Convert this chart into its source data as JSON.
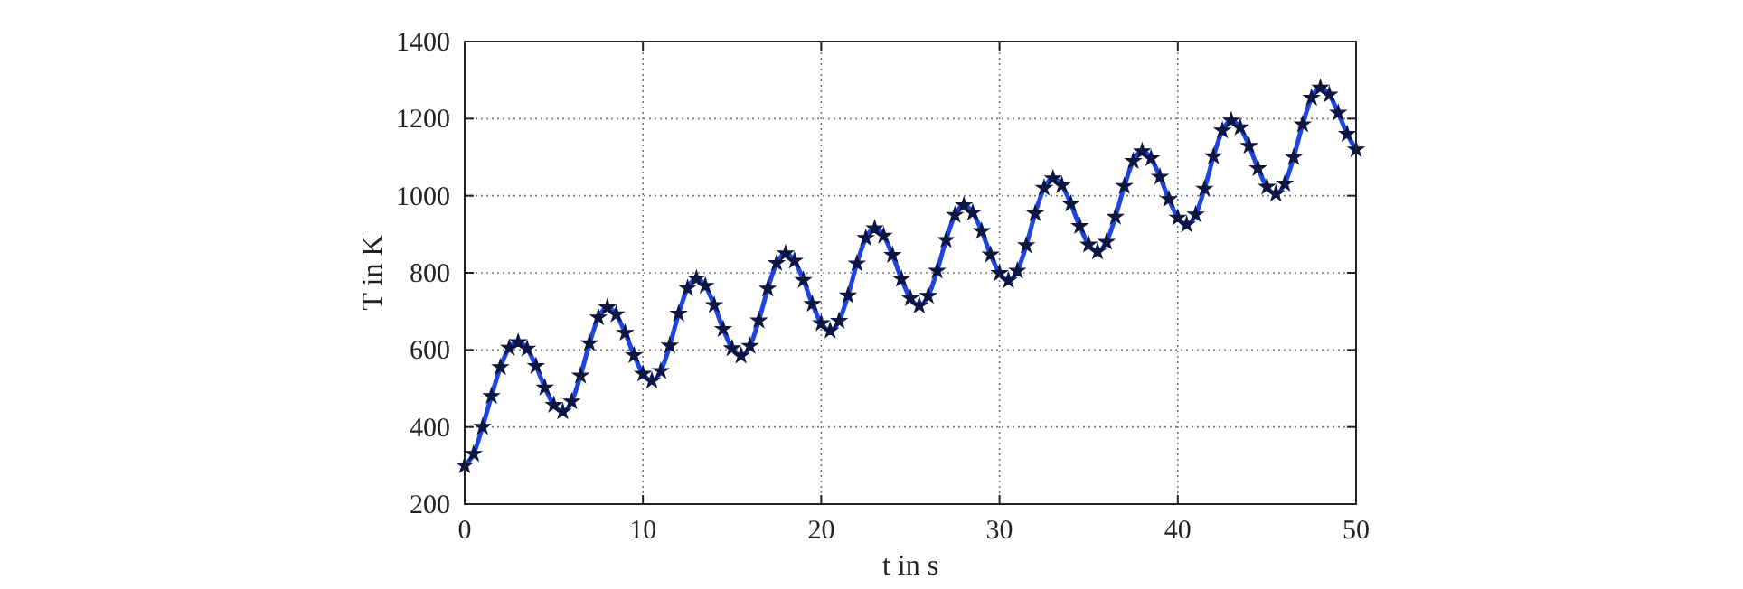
{
  "chart_data": {
    "type": "line",
    "xlabel": "t in s",
    "ylabel": "T in K",
    "x": [
      0,
      0.5,
      1,
      1.5,
      2,
      2.5,
      3,
      3.5,
      4,
      4.5,
      5,
      5.5,
      6,
      6.5,
      7,
      7.5,
      8,
      8.5,
      9,
      9.5,
      10,
      10.5,
      11,
      11.5,
      12,
      12.5,
      13,
      13.5,
      14,
      14.5,
      15,
      15.5,
      16,
      16.5,
      17,
      17.5,
      18,
      18.5,
      19,
      19.5,
      20,
      20.5,
      21,
      21.5,
      22,
      22.5,
      23,
      23.5,
      24,
      24.5,
      25,
      25.5,
      26,
      26.5,
      27,
      27.5,
      28,
      28.5,
      29,
      29.5,
      30,
      30.5,
      31,
      31.5,
      32,
      32.5,
      33,
      33.5,
      34,
      34.5,
      35,
      35.5,
      36,
      36.5,
      37,
      37.5,
      38,
      38.5,
      39,
      39.5,
      40,
      40.5,
      41,
      41.5,
      42,
      42.5,
      43,
      43.5,
      44,
      44.5,
      45,
      45.5,
      46,
      46.5,
      47,
      47.5,
      48,
      48.5,
      49,
      49.5,
      50
    ],
    "series": [
      {
        "color": "#1f45e0",
        "marker": "none",
        "values": [
          300,
          330,
          400,
          480,
          555,
          605,
          620,
          603,
          558,
          502,
          457,
          440,
          466,
          533,
          617,
          684,
          710,
          692,
          644,
          586,
          538,
          520,
          545,
          611,
          694,
          760,
          785,
          766,
          716,
          654,
          604,
          585,
          610,
          676,
          759,
          825,
          850,
          831,
          781,
          719,
          669,
          650,
          675,
          741,
          824,
          890,
          915,
          896,
          846,
          784,
          734,
          715,
          740,
          805,
          885,
          950,
          975,
          956,
          908,
          847,
          799,
          780,
          805,
          871,
          954,
          1020,
          1045,
          1027,
          979,
          921,
          873,
          855,
          880,
          945,
          1025,
          1090,
          1115,
          1097,
          1049,
          991,
          943,
          925,
          951,
          1018,
          1102,
          1169,
          1195,
          1177,
          1129,
          1071,
          1023,
          1005,
          1031,
          1100,
          1185,
          1254,
          1280,
          1262,
          1215,
          1160,
          1120
        ]
      },
      {
        "type": "scatter",
        "color": "#0c1640",
        "marker": "star",
        "values": [
          300,
          330,
          400,
          480,
          555,
          605,
          620,
          603,
          558,
          502,
          457,
          440,
          466,
          533,
          617,
          684,
          710,
          692,
          644,
          586,
          538,
          520,
          545,
          611,
          694,
          760,
          785,
          766,
          716,
          654,
          604,
          585,
          610,
          676,
          759,
          825,
          850,
          831,
          781,
          719,
          669,
          650,
          675,
          741,
          824,
          890,
          915,
          896,
          846,
          784,
          734,
          715,
          740,
          805,
          885,
          950,
          975,
          956,
          908,
          847,
          799,
          780,
          805,
          871,
          954,
          1020,
          1045,
          1027,
          979,
          921,
          873,
          855,
          880,
          945,
          1025,
          1090,
          1115,
          1097,
          1049,
          991,
          943,
          925,
          951,
          1018,
          1102,
          1169,
          1195,
          1177,
          1129,
          1071,
          1023,
          1005,
          1031,
          1100,
          1185,
          1254,
          1280,
          1262,
          1215,
          1160,
          1120
        ]
      }
    ],
    "xlim": [
      0,
      50
    ],
    "xticks": [
      0,
      10,
      20,
      30,
      40,
      50
    ],
    "ylim": [
      200,
      1400
    ],
    "yticks": [
      200,
      400,
      600,
      800,
      1000,
      1200,
      1400
    ],
    "grid": true,
    "line_style": "solid"
  }
}
